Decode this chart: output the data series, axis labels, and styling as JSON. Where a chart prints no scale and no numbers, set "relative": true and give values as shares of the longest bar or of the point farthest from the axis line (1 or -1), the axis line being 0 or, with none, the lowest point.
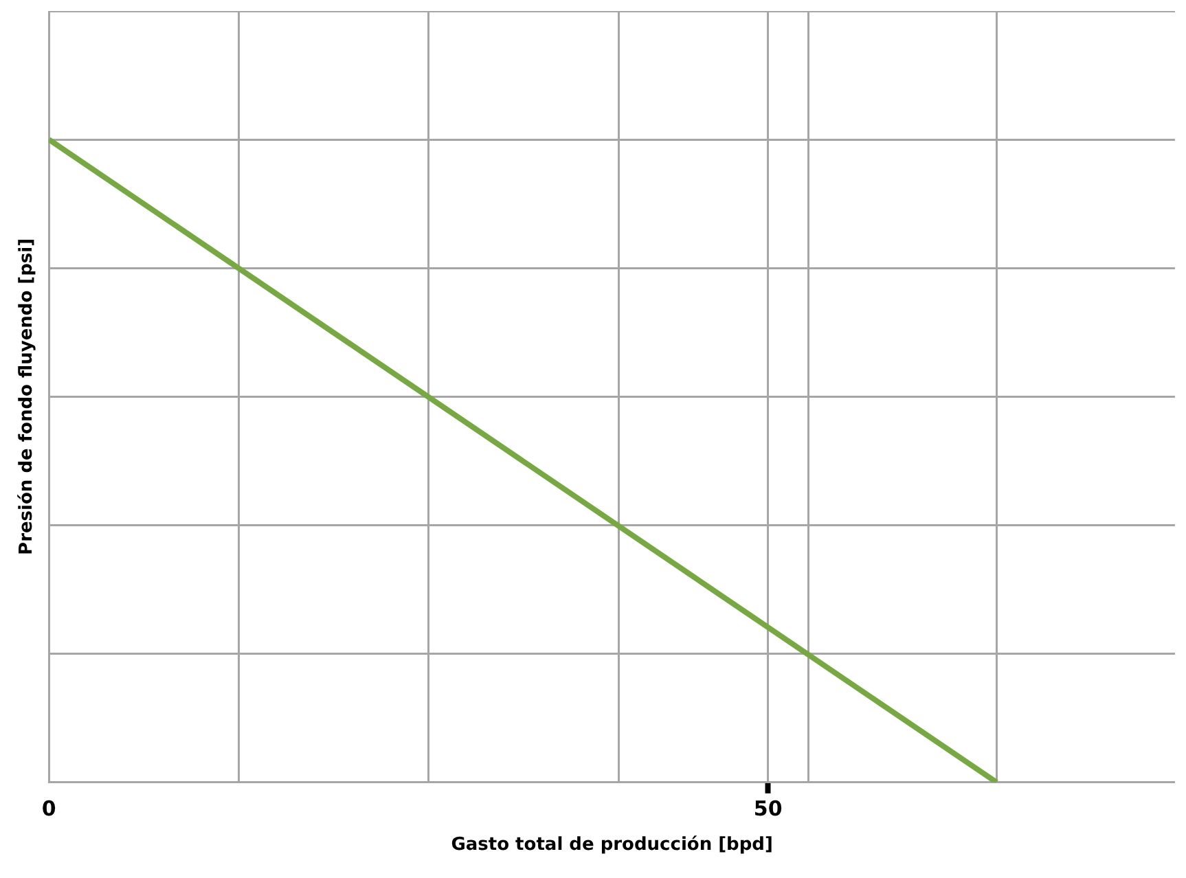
{
  "chart_data": {
    "type": "line",
    "xlabel": "Gasto total de producción [bpd]",
    "ylabel": "Presión de fondo fluyendo [psi]",
    "relative": true,
    "xlim": [
      0,
      78.3
    ],
    "xticks": [
      0,
      {
        "value": 13.2,
        "label": null
      },
      {
        "value": 26.4,
        "label": null
      },
      {
        "value": 39.6,
        "label": null
      },
      50,
      {
        "value": 52.8,
        "label": null
      },
      {
        "value": 65.9,
        "label": null
      }
    ],
    "grid": true,
    "legend": false,
    "marker": "none",
    "line_style": "solid",
    "series": [
      {
        "color": "#77a843",
        "x": [
          0,
          65.9
        ],
        "values": [
          1,
          0
        ]
      }
    ]
  }
}
